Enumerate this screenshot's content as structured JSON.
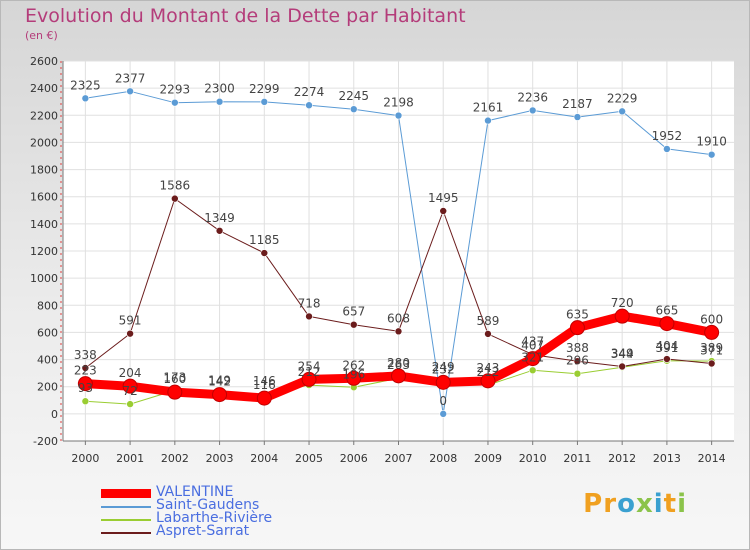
{
  "title": "Evolution du Montant de la Dette par Habitant",
  "subtitle": "(en €)",
  "brand": "Proxiti",
  "chart_data": {
    "type": "line",
    "x": [
      "2000",
      "2001",
      "2002",
      "2003",
      "2004",
      "2005",
      "2006",
      "2007",
      "2008",
      "2009",
      "2010",
      "2011",
      "2012",
      "2013",
      "2014"
    ],
    "ylim": [
      -200,
      2600
    ],
    "yticks": [
      -200,
      0,
      200,
      400,
      600,
      800,
      1000,
      1200,
      1400,
      1600,
      1800,
      2000,
      2200,
      2400,
      2600
    ],
    "grid": true,
    "legend_position": "bottom-left",
    "series": [
      {
        "name": "VALENTINE",
        "color": "#ff0000",
        "width": 9,
        "marker": 7,
        "values": [
          223,
          204,
          160,
          142,
          116,
          254,
          262,
          280,
          232,
          243,
          407,
          635,
          720,
          665,
          600
        ]
      },
      {
        "name": "Saint-Gaudens",
        "color": "#5b9bd5",
        "width": 1,
        "marker": 3.5,
        "values": [
          2325,
          2377,
          2293,
          2300,
          2299,
          2274,
          2245,
          2198,
          0,
          2161,
          2236,
          2187,
          2229,
          1952,
          1910
        ]
      },
      {
        "name": "Labarthe-Rivière",
        "color": "#9acd32",
        "width": 1,
        "marker": 3.5,
        "values": [
          93,
          72,
          173,
          149,
          146,
          212,
          196,
          263,
          249,
          212,
          321,
          296,
          344,
          391,
          389
        ]
      },
      {
        "name": "Aspret-Sarrat",
        "color": "#6b1c1c",
        "width": 1,
        "marker": 3.5,
        "values": [
          338,
          591,
          1586,
          1349,
          1185,
          718,
          657,
          608,
          1495,
          589,
          437,
          388,
          349,
          404,
          371
        ]
      }
    ]
  },
  "colors": {
    "title": "#b43c7a",
    "legend_text": "#4a6ee0",
    "brand_letters": [
      "#f0a020",
      "#f0a020",
      "#3aa0d0",
      "#8bc34a",
      "#3aa0d0",
      "#f0a020",
      "#8bc34a"
    ]
  }
}
